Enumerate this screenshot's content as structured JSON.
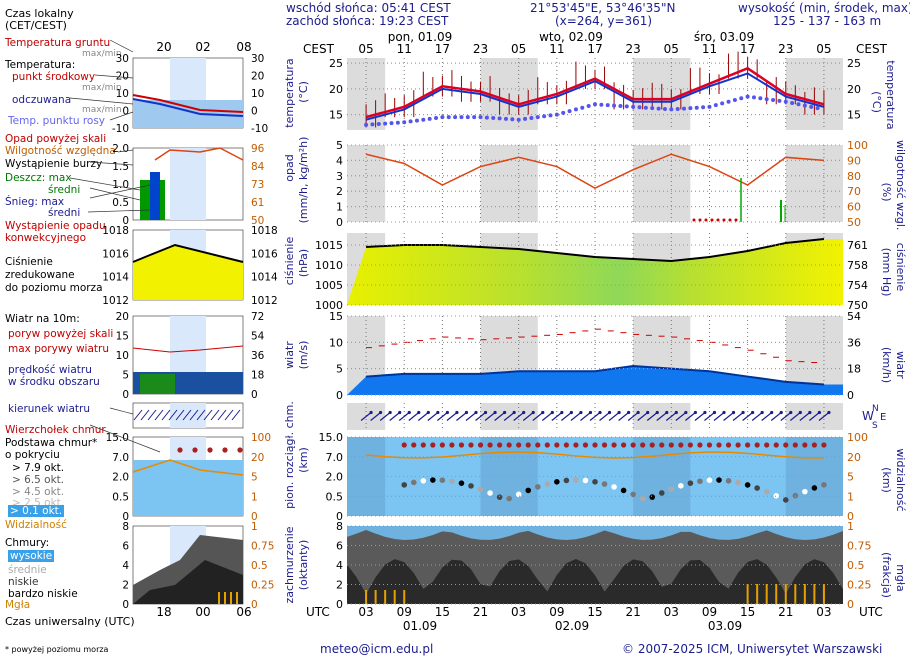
{
  "header": {
    "sunrise": "wschód słońca: 05:41 CEST",
    "sunset": "zachód słońca: 19:23 CEST",
    "coords": "21°53'45\"E, 53°46'35\"N",
    "grid": "(x=264,  y=361)",
    "elevation_title": "wysokość (min, środek, max)",
    "elevation_values": "125 - 137 - 163 m"
  },
  "legend": {
    "local_time": "Czas lokalny",
    "local_time_zone": "(CET/CEST)",
    "ground_temp": "Temperatura gruntu",
    "ground_temp_minmax": "max/min",
    "temperature": "Temperatura:",
    "point_mid": "punkt środkowy",
    "point_mid_minmax1": "max/min",
    "perceived": "odczuwana",
    "perceived_minmax": "max/min",
    "dew_point": "Temp. punktu rosy",
    "precip_above": "Opad powyżej skali",
    "humidity": "Wilgotność względna",
    "storm": "Wystąpienie burzy",
    "rain_max": "Deszcz: max",
    "rain_mean": "średni",
    "snow_max": "Śnieg:   max",
    "snow_mean": "średni",
    "convective1": "Wystąpienie opadu",
    "convective2": "konwekcyjnego",
    "pressure1": "Ciśnienie",
    "pressure2": "zredukowane",
    "pressure3": "do poziomu morza",
    "wind_title": "Wiatr na 10m:",
    "gust_above": "poryw powyżej skali",
    "gust_max": "max porywy wiatru",
    "wind_speed1": "prędkość wiatru",
    "wind_speed2": "w środku obszaru",
    "wind_dir": "kierunek wiatru",
    "cloud_top": "Wierzchołek chmur",
    "cloud_base1": "Podstawa chmur*",
    "cloud_base2": "o pokryciu",
    "okt1": "> 7.9 okt.",
    "okt2": "> 6.5 okt.",
    "okt3": "> 4.5 okt.",
    "okt4": "> 2.5 okt.",
    "okt5": "> 0.1 okt.",
    "visibility": "Widzialność",
    "clouds": "Chmury:",
    "cl_high": "wysokie",
    "cl_mid": "średnie",
    "cl_low": "niskie",
    "cl_vlow": "bardzo niskie",
    "fog": "Mgła",
    "utc_time": "Czas uniwersalny (UTC)",
    "footnote": "* powyżej poziomu morza"
  },
  "legend_axes": {
    "local_ticks": [
      "20",
      "02",
      "08"
    ],
    "utc_ticks": [
      "18",
      "00",
      "06"
    ],
    "temp": [
      "30",
      "20",
      "10",
      "0",
      "-10"
    ],
    "precip": [
      "2.0",
      "1.5",
      "1.0",
      "0.5",
      "0"
    ],
    "humidity": [
      "96",
      "84",
      "73",
      "61",
      "50"
    ],
    "pressure": [
      "1018",
      "1016",
      "1014",
      "1012"
    ],
    "wind": [
      "20",
      "15",
      "10",
      "5",
      "0"
    ],
    "wind_kmh": [
      "72",
      "54",
      "36",
      "18",
      "0"
    ],
    "cloudbase": [
      "15.0",
      "7.0",
      "2.0",
      "0.5",
      "0"
    ],
    "visibility": [
      "100",
      "20",
      "5",
      "1",
      "0"
    ],
    "clouds": [
      "8",
      "6",
      "4",
      "2",
      "0"
    ],
    "clouds_frac": [
      "1",
      "0.75",
      "0.5",
      "0.25",
      "0"
    ]
  },
  "main_axes": {
    "cest_label": "CEST",
    "utc_label": "UTC",
    "cest_hours": [
      "05",
      "11",
      "17",
      "23",
      "05",
      "11",
      "17",
      "23",
      "05",
      "11",
      "17",
      "23",
      "05"
    ],
    "utc_hours": [
      "03",
      "09",
      "15",
      "21",
      "03",
      "09",
      "15",
      "21",
      "03",
      "09",
      "15",
      "21",
      "03"
    ],
    "days_top": [
      "pon, 01.09",
      "wto, 02.09",
      "śro, 03.09"
    ],
    "days_bottom": [
      "01.09",
      "02.09",
      "03.09"
    ],
    "temp_ticks": [
      "25",
      "20",
      "15"
    ],
    "precip_ticks": [
      "5",
      "4",
      "3",
      "2",
      "1",
      "0"
    ],
    "humidity_ticks": [
      "100",
      "90",
      "80",
      "70",
      "60",
      "50"
    ],
    "pressure_ticks": [
      "1015",
      "1010",
      "1005",
      "1000"
    ],
    "pressure_mmhg": [
      "761",
      "758",
      "754",
      "750"
    ],
    "wind_ticks": [
      "15",
      "10",
      "5",
      "0"
    ],
    "wind_kmh": [
      "54",
      "36",
      "18",
      "0"
    ],
    "cloud_ticks": [
      "15.0",
      "7.0",
      "2.0",
      "0.5",
      "0"
    ],
    "vis_ticks": [
      "100",
      "20",
      "5",
      "1",
      "0"
    ],
    "octa_ticks": [
      "8",
      "6",
      "4",
      "2",
      "0"
    ],
    "frac_ticks": [
      "1",
      "0.75",
      "0.5",
      "0.25",
      "0"
    ],
    "compass": "N W E S"
  },
  "panel_labels": {
    "temp": "temperatura",
    "temp_unit": "(°C)",
    "precip": "opad",
    "precip_unit": "(mm/h, kg/m²h)",
    "humidity": "wilgotność wzgl.",
    "humidity_unit": "(%)",
    "pressure": "ciśnienie",
    "pressure_unit": "(hPa)",
    "pressure_r": "ciśnienie",
    "pressure_r_unit": "(mm Hg)",
    "wind": "wiatr",
    "wind_unit": "(m/s)",
    "wind_r": "wiatr",
    "wind_r_unit": "(km/h)",
    "cloud": "pion. rozciągł. chm.",
    "cloud_unit": "(km)",
    "vis": "widzialność",
    "vis_unit": "(km)",
    "cover": "zachmurzenie",
    "cover_unit": "(oktanty)",
    "fog": "mgła",
    "fog_unit": "(frakcja)"
  },
  "footer": {
    "email": "meteo@icm.edu.pl",
    "copyright": "© 2007-2025 ICM, Uniwersytet Warszawski"
  },
  "colors": {
    "temp_line": "#dd0022",
    "dew_point": "#5555ee",
    "perceived": "#1133cc",
    "humidity": "#dd4411",
    "pressure_fill": "#f2f200",
    "wind_fill": "#1177ee",
    "night_band": "#dcdcdc",
    "day_band": "#eef4ff"
  },
  "chart_data": [
    {
      "type": "line",
      "title": "temperatura (°C)",
      "x_hours_utc": [
        0,
        6,
        12,
        18,
        24,
        30,
        36,
        42,
        48,
        54,
        60,
        66,
        72
      ],
      "series": [
        {
          "name": "temperatura punkt środkowy",
          "values": [
            14.5,
            16.5,
            20.5,
            19.5,
            17.0,
            19.0,
            22.0,
            18.0,
            18.0,
            21.0,
            24.0,
            19.0,
            17.0
          ]
        },
        {
          "name": "temperatura odczuwana",
          "values": [
            14.0,
            16.0,
            20.0,
            19.0,
            16.5,
            18.5,
            21.5,
            17.5,
            17.5,
            20.5,
            23.0,
            18.5,
            16.5
          ]
        },
        {
          "name": "temp. punktu rosy",
          "values": [
            13.0,
            13.5,
            14.5,
            14.5,
            14.0,
            15.0,
            17.0,
            16.5,
            16.0,
            16.5,
            18.5,
            17.5,
            16.0
          ]
        }
      ],
      "ylim": [
        12,
        26
      ]
    },
    {
      "type": "line",
      "title": "wilgotność wzgl. (%)",
      "x_hours_utc": [
        0,
        6,
        12,
        18,
        24,
        30,
        36,
        42,
        48,
        54,
        60,
        66,
        72
      ],
      "series": [
        {
          "name": "wilgotność względna",
          "values": [
            94,
            88,
            74,
            86,
            92,
            86,
            72,
            84,
            94,
            86,
            74,
            92,
            90
          ]
        }
      ],
      "ylim": [
        50,
        100
      ]
    },
    {
      "type": "line",
      "title": "ciśnienie (hPa)",
      "x_hours_utc": [
        0,
        6,
        12,
        18,
        24,
        30,
        36,
        42,
        48,
        54,
        60,
        66,
        72
      ],
      "series": [
        {
          "name": "ciśnienie",
          "values": [
            1014.5,
            1015.0,
            1015.0,
            1014.5,
            1014.0,
            1013.0,
            1012.0,
            1011.5,
            1011.0,
            1012.0,
            1013.5,
            1015.5,
            1016.5
          ]
        }
      ],
      "ylim": [
        1000,
        1018
      ]
    },
    {
      "type": "area",
      "title": "wiatr (m/s)",
      "x_hours_utc": [
        0,
        6,
        12,
        18,
        24,
        30,
        36,
        42,
        48,
        54,
        60,
        66,
        72
      ],
      "series": [
        {
          "name": "prędkość wiatru",
          "values": [
            3.5,
            4.0,
            4.0,
            4.0,
            4.5,
            4.5,
            4.5,
            5.5,
            5.0,
            4.5,
            3.5,
            2.5,
            2.0
          ]
        },
        {
          "name": "max porywy wiatru",
          "values": [
            9.0,
            10.0,
            11.0,
            10.5,
            11.0,
            11.5,
            12.5,
            11.5,
            11.0,
            10.0,
            8.5,
            6.5,
            6.0
          ]
        }
      ],
      "ylim": [
        0,
        15
      ]
    }
  ]
}
